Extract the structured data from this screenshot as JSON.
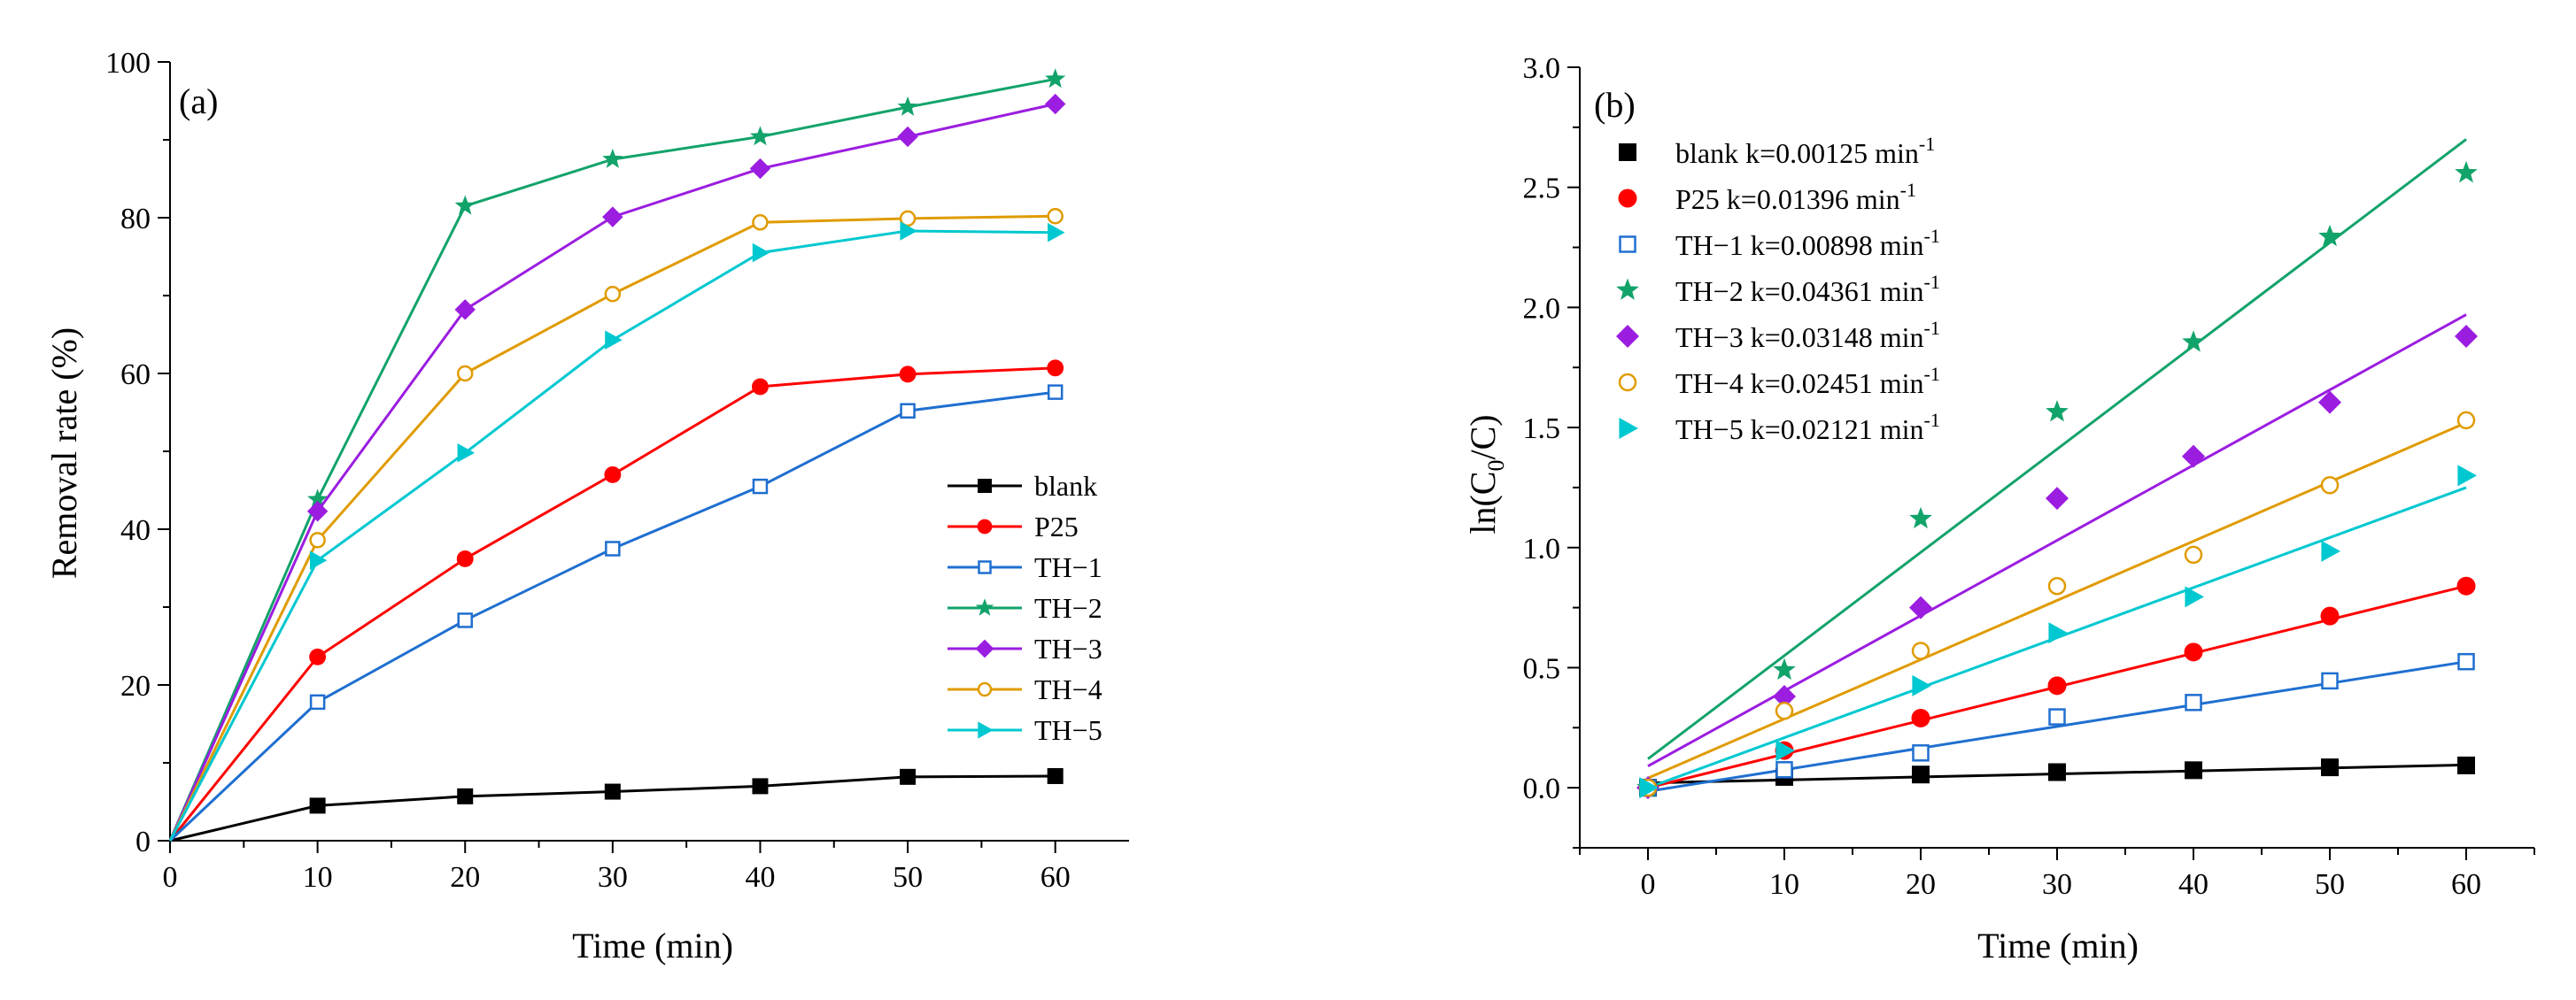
{
  "chart_data": [
    {
      "type": "line",
      "panel": "(a)",
      "title": "",
      "xlabel": "Time (min)",
      "ylabel": "Removal rate (%)",
      "xlim": [
        0,
        65
      ],
      "ylim": [
        0,
        100
      ],
      "x_ticks": [
        "0",
        "10",
        "20",
        "30",
        "40",
        "50",
        "60"
      ],
      "y_ticks": [
        "0",
        "20",
        "40",
        "60",
        "80",
        "100"
      ],
      "legend_position": "bottom-right",
      "x": [
        0,
        10,
        20,
        30,
        40,
        50,
        60
      ],
      "series": [
        {
          "name": "blank",
          "color": "#000000",
          "marker": "square-filled",
          "values": [
            0,
            4.5,
            5.7,
            6.3,
            7.0,
            8.2,
            8.3
          ]
        },
        {
          "name": "P25",
          "color": "#ff0000",
          "marker": "circle-filled",
          "values": [
            0,
            23.6,
            36.2,
            47.0,
            58.3,
            59.9,
            60.7
          ]
        },
        {
          "name": "TH−1",
          "color": "#1f6fd0",
          "marker": "square-open",
          "values": [
            0,
            17.8,
            28.3,
            37.5,
            45.5,
            55.2,
            57.6
          ]
        },
        {
          "name": "TH−2",
          "color": "#12a36a",
          "marker": "star",
          "values": [
            0,
            43.8,
            81.5,
            87.5,
            90.4,
            94.2,
            97.8
          ]
        },
        {
          "name": "TH−3",
          "color": "#9b1de0",
          "marker": "diamond-filled",
          "values": [
            0,
            42.3,
            68.2,
            80.1,
            86.3,
            90.4,
            94.6
          ]
        },
        {
          "name": "TH−4",
          "color": "#e09b00",
          "marker": "circle-open",
          "values": [
            0,
            38.6,
            60.0,
            70.2,
            79.4,
            79.9,
            80.2
          ]
        },
        {
          "name": "TH−5",
          "color": "#00c8d0",
          "marker": "triangle-right",
          "values": [
            0,
            36.0,
            49.8,
            64.3,
            75.5,
            78.3,
            78.1
          ]
        }
      ]
    },
    {
      "type": "scatter",
      "panel": "(b)",
      "title": "",
      "xlabel": "Time (min)",
      "ylabel_main": "ln(C",
      "ylabel_sub": "0",
      "ylabel_tail": "/C)",
      "xlim": [
        -5,
        65
      ],
      "ylim": [
        -0.25,
        3.0
      ],
      "x_ticks": [
        "0",
        "10",
        "20",
        "30",
        "40",
        "50",
        "60"
      ],
      "y_ticks": [
        "0.0",
        "0.5",
        "1.0",
        "1.5",
        "2.0",
        "2.5",
        "3.0"
      ],
      "legend_position": "top-left",
      "k_prefix": "k=",
      "k_unit": "min",
      "k_exp": "-1",
      "x": [
        0,
        10,
        20,
        30,
        40,
        50,
        60
      ],
      "series": [
        {
          "name": "blank",
          "k": "0.00125",
          "color": "#000000",
          "marker": "square-filled",
          "values": [
            0.0,
            0.045,
            0.055,
            0.065,
            0.073,
            0.085,
            0.093
          ],
          "fit": [
            0.02,
            0.095
          ]
        },
        {
          "name": "P25",
          "k": "0.01396",
          "color": "#ff0000",
          "marker": "circle-filled",
          "values": [
            0.0,
            0.155,
            0.29,
            0.425,
            0.565,
            0.715,
            0.84
          ],
          "fit": [
            0.0,
            0.84
          ]
        },
        {
          "name": "TH−1",
          "k": "0.00898",
          "color": "#1f6fd0",
          "marker": "square-open",
          "values": [
            0.0,
            0.075,
            0.145,
            0.295,
            0.355,
            0.445,
            0.525
          ],
          "fit": [
            -0.015,
            0.525
          ]
        },
        {
          "name": "TH−2",
          "k": "0.04361",
          "color": "#12a36a",
          "marker": "star",
          "values": [
            0.0,
            0.49,
            1.12,
            1.565,
            1.855,
            2.295,
            2.56
          ],
          "fit": [
            0.12,
            2.7
          ]
        },
        {
          "name": "TH−3",
          "k": "0.03148",
          "color": "#9b1de0",
          "marker": "diamond-filled",
          "values": [
            0.0,
            0.38,
            0.75,
            1.205,
            1.38,
            1.605,
            1.88
          ],
          "fit": [
            0.09,
            1.97
          ]
        },
        {
          "name": "TH−4",
          "k": "0.02451",
          "color": "#e09b00",
          "marker": "circle-open",
          "values": [
            0.0,
            0.32,
            0.57,
            0.84,
            0.97,
            1.26,
            1.53
          ],
          "fit": [
            0.04,
            1.52
          ]
        },
        {
          "name": "TH−5",
          "k": "0.02121",
          "color": "#00c8d0",
          "marker": "triangle-right",
          "values": [
            0.0,
            0.155,
            0.425,
            0.645,
            0.795,
            0.985,
            1.3
          ],
          "fit": [
            0.0,
            1.25
          ]
        }
      ]
    }
  ]
}
